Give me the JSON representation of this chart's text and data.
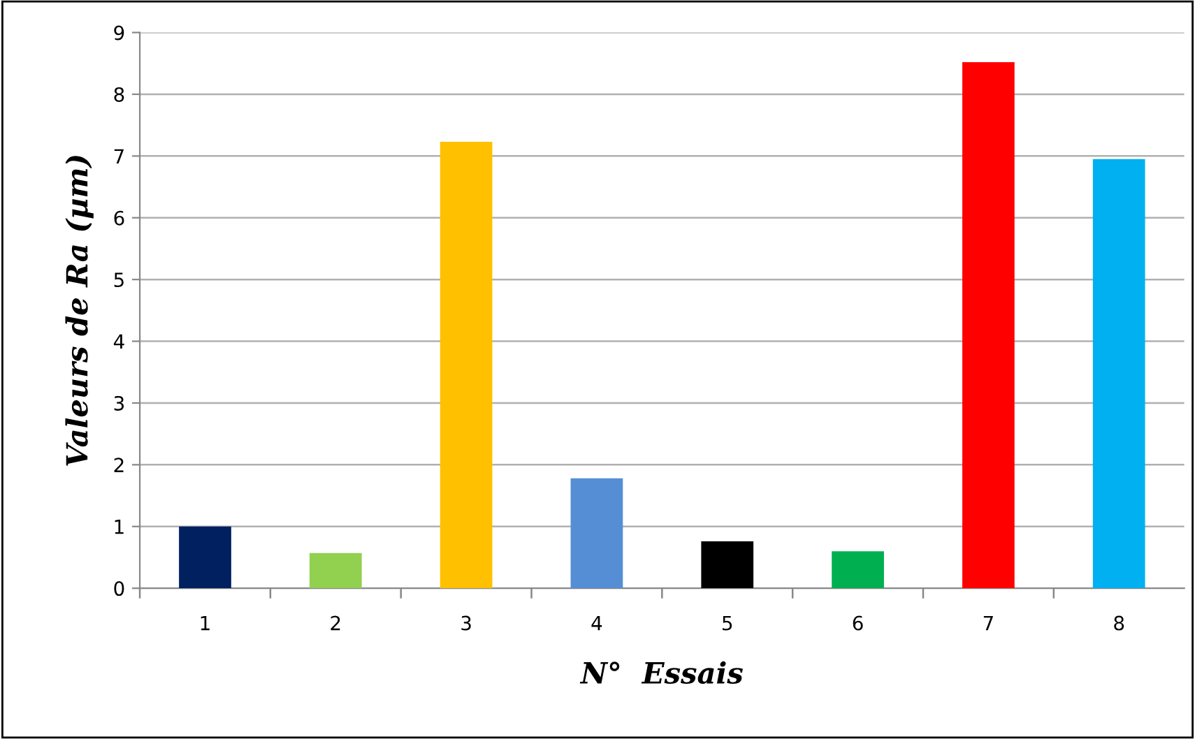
{
  "chart_data": {
    "type": "bar",
    "xlabel": "N°  Essais",
    "ylabel": "Valeurs de Ra (µm)",
    "categories": [
      "1",
      "2",
      "3",
      "4",
      "5",
      "6",
      "7",
      "8"
    ],
    "values": [
      1.0,
      0.57,
      7.23,
      1.78,
      0.76,
      0.6,
      8.52,
      6.95
    ],
    "colors": [
      "#002060",
      "#92d050",
      "#ffc000",
      "#558ed5",
      "#000000",
      "#00b050",
      "#ff0000",
      "#00b0f0"
    ],
    "ylim": [
      0,
      9
    ],
    "yticks": [
      0,
      1,
      2,
      3,
      4,
      5,
      6,
      7,
      8,
      9
    ],
    "grid": "y",
    "legend": false
  }
}
